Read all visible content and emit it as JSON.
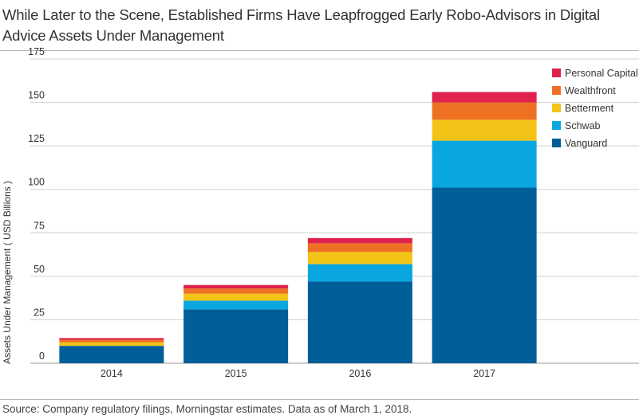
{
  "title": "While Later to the Scene, Established Firms Have Leapfrogged Early Robo-Advisors in Digital Advice Assets Under Management",
  "source": "Source: Company regulatory filings, Morningstar estimates. Data as of March 1, 2018.",
  "chart_data": {
    "type": "bar",
    "stacked": true,
    "title": "While Later to the Scene, Established Firms Have Leapfrogged Early Robo-Advisors in Digital Advice Assets Under Management",
    "xlabel": "",
    "ylabel": "Assets Under Management ( USD Billions )",
    "ylim": [
      0,
      175
    ],
    "yticks": [
      0,
      25,
      50,
      75,
      100,
      125,
      150,
      175
    ],
    "grid": true,
    "legend_position": "top-right",
    "categories": [
      "2014",
      "2015",
      "2016",
      "2017"
    ],
    "series": [
      {
        "name": "Vanguard",
        "color": "#005e99",
        "values": [
          10,
          31,
          47,
          101
        ]
      },
      {
        "name": "Schwab",
        "color": "#0aa6e0",
        "values": [
          0,
          5,
          10,
          27
        ]
      },
      {
        "name": "Betterment",
        "color": "#f3c318",
        "values": [
          2,
          4,
          7,
          12
        ]
      },
      {
        "name": "Wealthfront",
        "color": "#ee7123",
        "values": [
          1.5,
          3,
          5,
          10
        ]
      },
      {
        "name": "Personal Capital",
        "color": "#e0224f",
        "values": [
          1,
          2,
          3,
          6
        ]
      }
    ]
  }
}
